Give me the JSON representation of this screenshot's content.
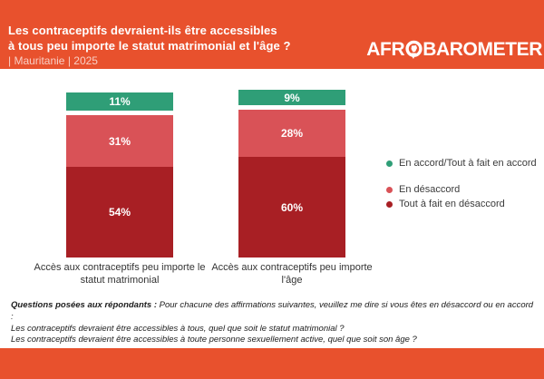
{
  "header": {
    "title_line1": "Les contraceptifs devraient-ils être accessibles",
    "title_line2": "à tous peu importe le statut matrimonial et l'âge ?",
    "subtitle": "| Mauritanie | 2025",
    "logo_prefix": "AFR",
    "logo_suffix": "BAROMETER"
  },
  "colors": {
    "banner_orange": "#E8512D",
    "agree_green": "#2F9E77",
    "disagree_pink": "#D95257",
    "strongly_disagree_red": "#A81F24"
  },
  "chart_data": {
    "type": "bar",
    "stacked": true,
    "unit": "%",
    "title": "Les contraceptifs devraient-ils être accessibles à tous peu importe le statut matrimonial et l'âge ?",
    "subtitle": "| Mauritanie | 2025",
    "categories": [
      "Accès aux contraceptifs peu importe le statut matrimonial",
      "Accès aux contraceptifs peu importe l'âge"
    ],
    "categories_lines": [
      [
        "Accès aux contraceptifs peu importe le",
        "statut matrimonial"
      ],
      [
        "Accès aux contraceptifs peu importe",
        "l'âge"
      ]
    ],
    "series": [
      {
        "name": "En accord/Tout à fait en accord",
        "color": "#2F9E77",
        "values": [
          11,
          9
        ]
      },
      {
        "name": "En désaccord",
        "color": "#D95257",
        "values": [
          31,
          28
        ]
      },
      {
        "name": "Tout à fait en désaccord",
        "color": "#A81F24",
        "values": [
          54,
          60
        ]
      }
    ],
    "ylim": [
      0,
      100
    ],
    "grid": false,
    "legend_position": "right"
  },
  "footnote": {
    "lead": "Questions posées aux répondants :",
    "line1_rest": " Pour chacune des affirmations suivantes, veuillez me dire si vous êtes en désaccord ou en accord :",
    "line2": "Les contraceptifs devraient être accessibles à tous, quel que soit le statut matrimonial ?",
    "line3": "Les contraceptifs devraient être accessibles à toute personne sexuellement active, quel que soit son âge ?"
  }
}
